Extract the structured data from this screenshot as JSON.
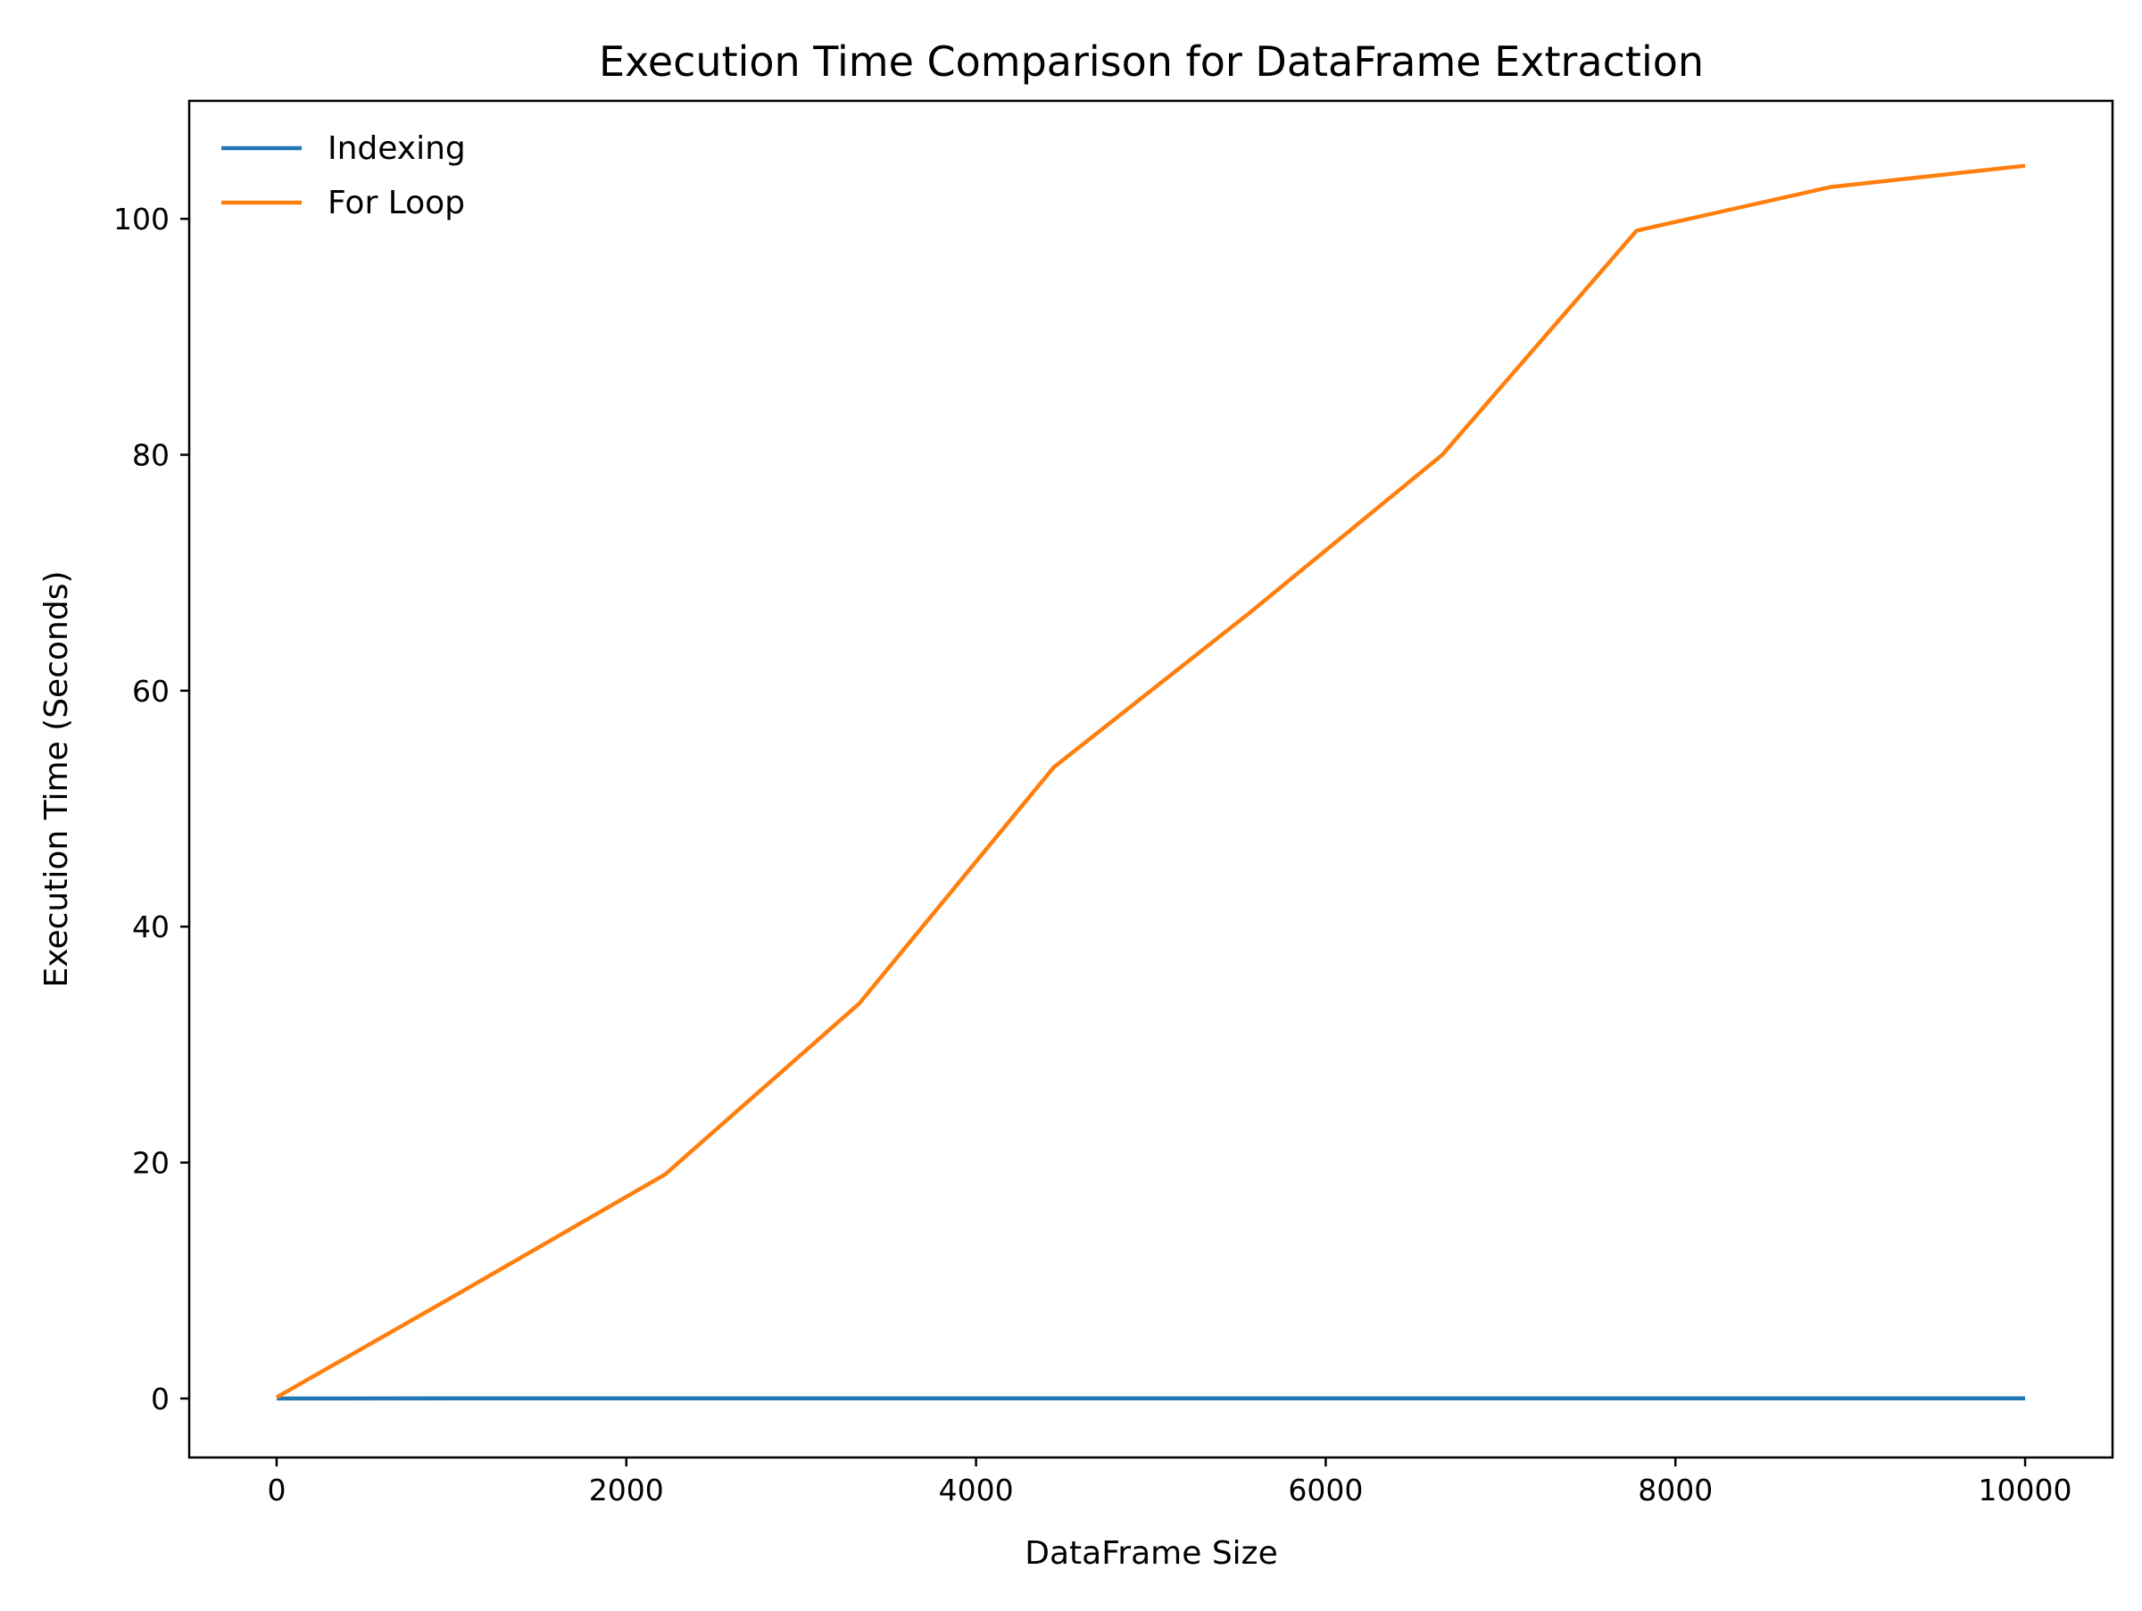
{
  "chart_data": {
    "type": "line",
    "title": "Execution Time Comparison for DataFrame Extraction",
    "xlabel": "DataFrame Size",
    "ylabel": "Execution Time (Seconds)",
    "xlim": [
      -500,
      10500
    ],
    "ylim": [
      -5,
      110
    ],
    "xticks": [
      0,
      2000,
      4000,
      6000,
      8000,
      10000
    ],
    "yticks": [
      0,
      20,
      40,
      60,
      80,
      100
    ],
    "grid": false,
    "legend_position": "top-left",
    "x": [
      0,
      1111,
      2222,
      3333,
      4444,
      5556,
      6667,
      7778,
      8889,
      10000
    ],
    "series": [
      {
        "name": "Indexing",
        "color": "#1f77b4",
        "values": [
          0,
          0.01,
          0.01,
          0.01,
          0.01,
          0.01,
          0.01,
          0.01,
          0.01,
          0.01
        ]
      },
      {
        "name": "For Loop",
        "color": "#ff7f0e",
        "values": [
          0.1,
          9.5,
          19,
          33.5,
          53.5,
          66.5,
          80,
          99,
          102.7,
          104.5
        ]
      }
    ]
  }
}
